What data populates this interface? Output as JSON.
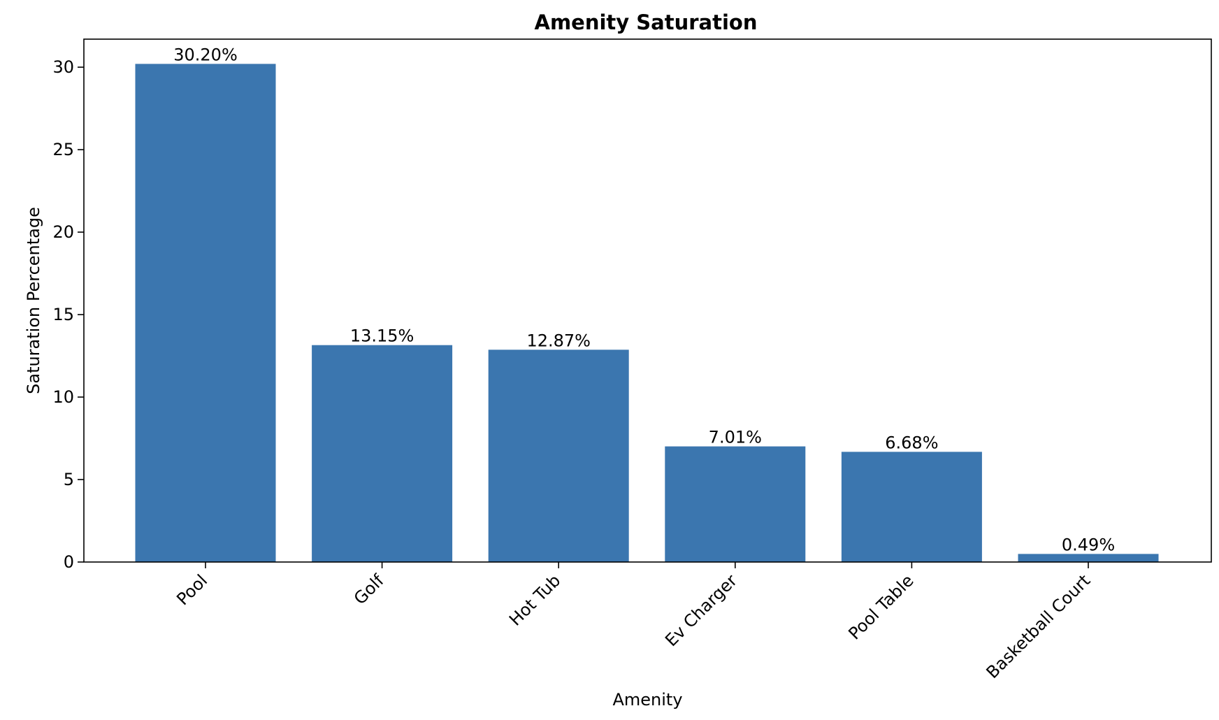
{
  "chart_data": {
    "type": "bar",
    "title": "Amenity Saturation",
    "xlabel": "Amenity",
    "ylabel": "Saturation Percentage",
    "categories": [
      "Pool",
      "Golf",
      "Hot Tub",
      "Ev Charger",
      "Pool Table",
      "Basketball Court"
    ],
    "values": [
      30.2,
      13.15,
      12.87,
      7.01,
      6.68,
      0.49
    ],
    "data_labels": [
      "30.20%",
      "13.15%",
      "12.87%",
      "7.01%",
      "6.68%",
      "0.49%"
    ],
    "ylim": [
      0,
      31.7
    ],
    "yticks": [
      0,
      5,
      10,
      15,
      20,
      25,
      30
    ],
    "ytick_labels": [
      "0",
      "5",
      "10",
      "15",
      "20",
      "25",
      "30"
    ],
    "grid": false,
    "legend": "none",
    "bar_color": "#3b76af"
  }
}
